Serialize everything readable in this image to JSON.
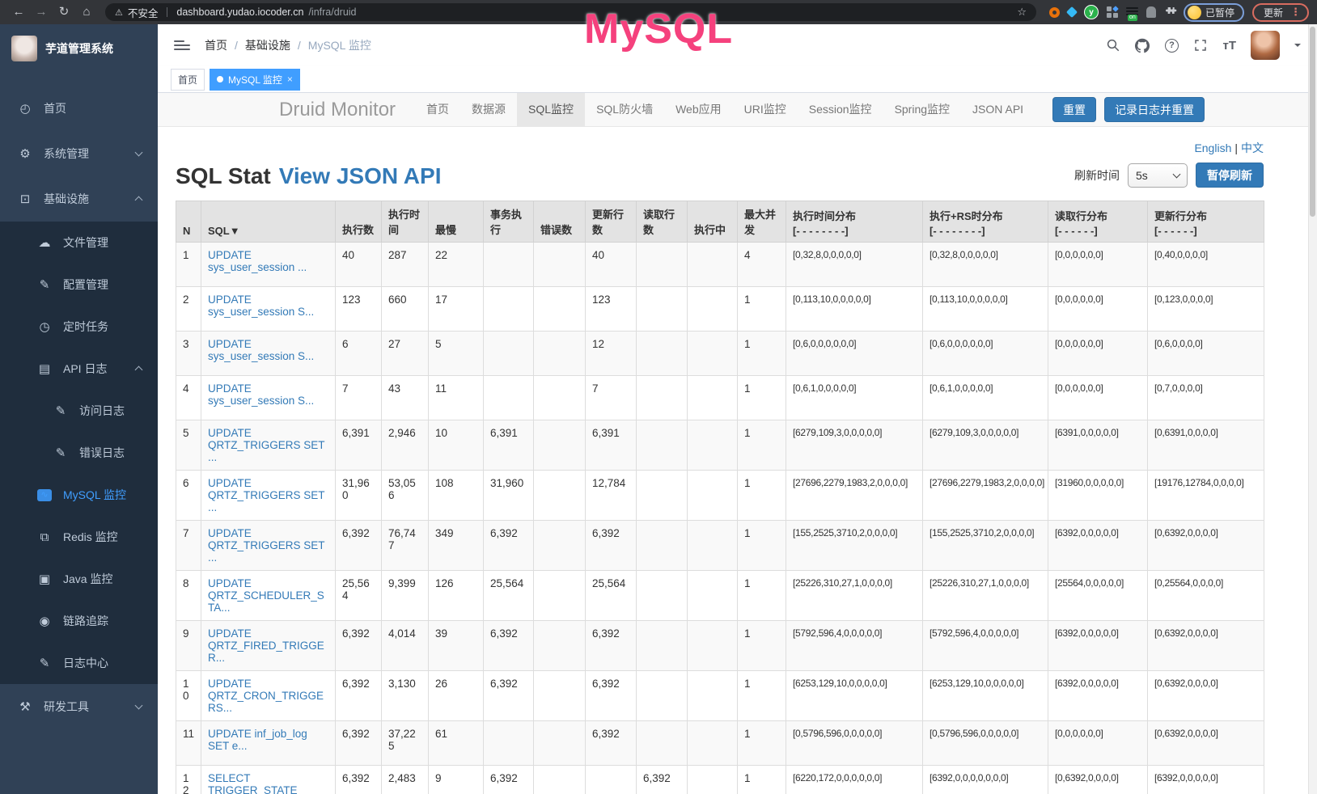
{
  "colors": {
    "accent_blue": "#409eff",
    "druid_link_blue": "#337ab7",
    "annotation_pink": "#f5417d",
    "sidebar_bg": "#304156",
    "submenu_bg": "#1f2d3d",
    "table_header_bg": "#e3e3e3"
  },
  "browser": {
    "security_label": "不安全",
    "url_host": "dashboard.yudao.iocoder.cn",
    "url_path": "/infra/druid",
    "extension_badge": "on",
    "extension_letter": "y",
    "profile_label": "已暂停",
    "update_label": "更新"
  },
  "annotation": {
    "text": "MySQL"
  },
  "sidebar": {
    "title": "芋道管理系统",
    "items": [
      {
        "label": "首页",
        "icon": "dashboard-icon",
        "level": 0
      },
      {
        "label": "系统管理",
        "icon": "gear-icon",
        "level": 0,
        "chevron": "down"
      },
      {
        "label": "基础设施",
        "icon": "infrastructure-icon",
        "level": 0,
        "chevron": "up"
      },
      {
        "label": "文件管理",
        "icon": "file-upload-icon",
        "level": 1,
        "dark": true
      },
      {
        "label": "配置管理",
        "icon": "config-edit-icon",
        "level": 1,
        "dark": true
      },
      {
        "label": "定时任务",
        "icon": "timer-icon",
        "level": 1,
        "dark": true
      },
      {
        "label": "API 日志",
        "icon": "api-log-icon",
        "level": 1,
        "dark": true,
        "chevron": "up"
      },
      {
        "label": "访问日志",
        "icon": "access-log-icon",
        "level": 2,
        "dark": true
      },
      {
        "label": "错误日志",
        "icon": "error-log-icon",
        "level": 2,
        "dark": true
      },
      {
        "label": "MySQL 监控",
        "icon": "mysql-monitor-icon",
        "level": 1,
        "dark": true,
        "active": true
      },
      {
        "label": "Redis 监控",
        "icon": "redis-monitor-icon",
        "level": 1,
        "dark": true
      },
      {
        "label": "Java 监控",
        "icon": "java-monitor-icon",
        "level": 1,
        "dark": true
      },
      {
        "label": "链路追踪",
        "icon": "trace-icon",
        "level": 1,
        "dark": true
      },
      {
        "label": "日志中心",
        "icon": "log-center-icon",
        "level": 1,
        "dark": true
      },
      {
        "label": "研发工具",
        "icon": "dev-tools-icon",
        "level": 0,
        "chevron": "down"
      }
    ]
  },
  "header": {
    "breadcrumb": [
      "首页",
      "基础设施",
      "MySQL 监控"
    ]
  },
  "tags": [
    {
      "label": "首页",
      "active": false,
      "closable": false
    },
    {
      "label": "MySQL 监控",
      "active": true,
      "closable": true
    }
  ],
  "druid": {
    "brand": "Druid Monitor",
    "nav": [
      "首页",
      "数据源",
      "SQL监控",
      "SQL防火墙",
      "Web应用",
      "URI监控",
      "Session监控",
      "Spring监控",
      "JSON API"
    ],
    "active_nav": "SQL监控",
    "reset_button": "重置",
    "log_reset_button": "记录日志并重置",
    "lang_en": "English",
    "lang_sep": "|",
    "lang_zh": "中文",
    "title": "SQL Stat",
    "title_link": "View JSON API",
    "refresh_label": "刷新时间",
    "refresh_value": "5s",
    "pause_button": "暂停刷新"
  },
  "table": {
    "columns": [
      {
        "label": "N"
      },
      {
        "label": "SQL",
        "sort": "▼"
      },
      {
        "label": "执行数"
      },
      {
        "label": "执行时间"
      },
      {
        "label": "最慢"
      },
      {
        "label": "事务执行"
      },
      {
        "label": "错误数"
      },
      {
        "label": "更新行数"
      },
      {
        "label": "读取行数"
      },
      {
        "label": "执行中"
      },
      {
        "label": "最大并发"
      },
      {
        "label": "执行时间分布",
        "sub": "[- - - - - - - -]"
      },
      {
        "label": "执行+RS时分布",
        "sub": "[- - - - - - - -]"
      },
      {
        "label": "读取行分布",
        "sub": "[- - - - - -]"
      },
      {
        "label": "更新行分布",
        "sub": "[- - - - - -]"
      }
    ],
    "rows": [
      [
        "1",
        "UPDATE sys_user_session ...",
        "40",
        "287",
        "22",
        "",
        "",
        "40",
        "",
        "",
        "4",
        "[0,32,8,0,0,0,0,0]",
        "[0,32,8,0,0,0,0,0]",
        "[0,0,0,0,0,0]",
        "[0,40,0,0,0,0]"
      ],
      [
        "2",
        "UPDATE sys_user_session S...",
        "123",
        "660",
        "17",
        "",
        "",
        "123",
        "",
        "",
        "1",
        "[0,113,10,0,0,0,0,0]",
        "[0,113,10,0,0,0,0,0]",
        "[0,0,0,0,0,0]",
        "[0,123,0,0,0,0]"
      ],
      [
        "3",
        "UPDATE sys_user_session S...",
        "6",
        "27",
        "5",
        "",
        "",
        "12",
        "",
        "",
        "1",
        "[0,6,0,0,0,0,0,0]",
        "[0,6,0,0,0,0,0,0]",
        "[0,0,0,0,0,0]",
        "[0,6,0,0,0,0]"
      ],
      [
        "4",
        "UPDATE sys_user_session S...",
        "7",
        "43",
        "11",
        "",
        "",
        "7",
        "",
        "",
        "1",
        "[0,6,1,0,0,0,0,0]",
        "[0,6,1,0,0,0,0,0]",
        "[0,0,0,0,0,0]",
        "[0,7,0,0,0,0]"
      ],
      [
        "5",
        "UPDATE QRTZ_TRIGGERS SET ...",
        "6,391",
        "2,946",
        "10",
        "6,391",
        "",
        "6,391",
        "",
        "",
        "1",
        "[6279,109,3,0,0,0,0,0]",
        "[6279,109,3,0,0,0,0,0]",
        "[6391,0,0,0,0,0]",
        "[0,6391,0,0,0,0]"
      ],
      [
        "6",
        "UPDATE QRTZ_TRIGGERS SET ...",
        "31,960",
        "53,056",
        "108",
        "31,960",
        "",
        "12,784",
        "",
        "",
        "1",
        "[27696,2279,1983,2,0,0,0,0]",
        "[27696,2279,1983,2,0,0,0,0]",
        "[31960,0,0,0,0,0]",
        "[19176,12784,0,0,0,0]"
      ],
      [
        "7",
        "UPDATE QRTZ_TRIGGERS SET ...",
        "6,392",
        "76,747",
        "349",
        "6,392",
        "",
        "6,392",
        "",
        "",
        "1",
        "[155,2525,3710,2,0,0,0,0]",
        "[155,2525,3710,2,0,0,0,0]",
        "[6392,0,0,0,0,0]",
        "[0,6392,0,0,0,0]"
      ],
      [
        "8",
        "UPDATE QRTZ_SCHEDULER_STA...",
        "25,564",
        "9,399",
        "126",
        "25,564",
        "",
        "25,564",
        "",
        "",
        "1",
        "[25226,310,27,1,0,0,0,0]",
        "[25226,310,27,1,0,0,0,0]",
        "[25564,0,0,0,0,0]",
        "[0,25564,0,0,0,0]"
      ],
      [
        "9",
        "UPDATE QRTZ_FIRED_TRIGGER...",
        "6,392",
        "4,014",
        "39",
        "6,392",
        "",
        "6,392",
        "",
        "",
        "1",
        "[5792,596,4,0,0,0,0,0]",
        "[5792,596,4,0,0,0,0,0]",
        "[6392,0,0,0,0,0]",
        "[0,6392,0,0,0,0]"
      ],
      [
        "10",
        "UPDATE QRTZ_CRON_TRIGGERS...",
        "6,392",
        "3,130",
        "26",
        "6,392",
        "",
        "6,392",
        "",
        "",
        "1",
        "[6253,129,10,0,0,0,0,0]",
        "[6253,129,10,0,0,0,0,0]",
        "[6392,0,0,0,0,0]",
        "[0,6392,0,0,0,0]"
      ],
      [
        "11",
        "UPDATE inf_job_log SET e...",
        "6,392",
        "37,225",
        "61",
        "",
        "",
        "6,392",
        "",
        "",
        "1",
        "[0,5796,596,0,0,0,0,0]",
        "[0,5796,596,0,0,0,0,0]",
        "[0,0,0,0,0,0]",
        "[0,6392,0,0,0,0]"
      ],
      [
        "12",
        "SELECT TRIGGER_STATE",
        "6,392",
        "2,483",
        "9",
        "6,392",
        "",
        "",
        "6,392",
        "",
        "1",
        "[6220,172,0,0,0,0,0,0]",
        "[6392,0,0,0,0,0,0,0]",
        "[0,6392,0,0,0,0]",
        "[6392,0,0,0,0,0]"
      ]
    ]
  }
}
